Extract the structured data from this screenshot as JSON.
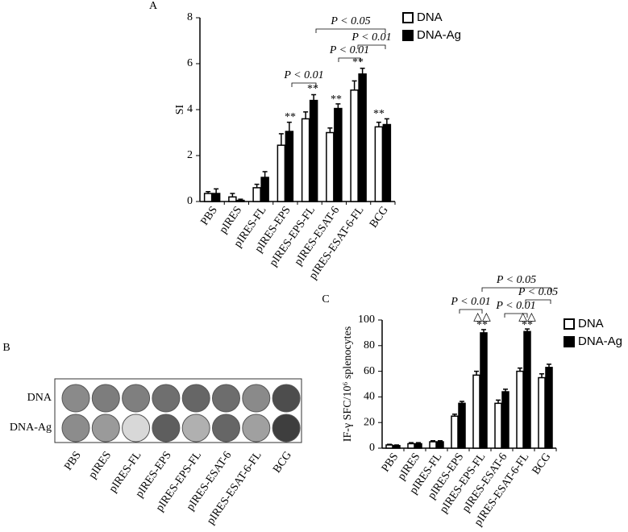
{
  "chart_data": [
    {
      "type": "bar",
      "panel": "A",
      "y_label": "SI",
      "categories": [
        "PBS",
        "pIRES",
        "pIRES-FL",
        "pIRES-EPS",
        "pIRES-EPS-FL",
        "pIRES-ESAT-6",
        "pIRES-ESAT-6-FL",
        "BCG"
      ],
      "series": [
        {
          "name": "DNA",
          "color": "#ffffff",
          "values": [
            0.35,
            0.2,
            0.6,
            2.45,
            3.6,
            3.0,
            4.85,
            3.25
          ],
          "errors": [
            0.08,
            0.15,
            0.15,
            0.5,
            0.3,
            0.2,
            0.4,
            0.2
          ]
        },
        {
          "name": "DNA-Ag",
          "color": "#000000",
          "values": [
            0.35,
            0.05,
            1.05,
            3.05,
            4.4,
            4.05,
            5.55,
            3.35
          ],
          "errors": [
            0.2,
            0.05,
            0.25,
            0.4,
            0.25,
            0.2,
            0.25,
            0.25
          ]
        }
      ],
      "ylim": [
        0,
        8
      ],
      "yticks": [
        0,
        2,
        4,
        6,
        8
      ],
      "annotations": [
        "P < 0.05",
        "P < 0.01",
        "P < 0.01",
        "P < 0.01",
        "**",
        "**",
        "**",
        "**",
        "**"
      ]
    },
    {
      "type": "bar",
      "panel": "C",
      "y_label": "IF-γ SFC/10⁶ splenocytes",
      "categories": [
        "PBS",
        "pIRES",
        "pIRES-FL",
        "pIRES-EPS",
        "pIRES-EPS-FL",
        "pIRES-ESAT-6",
        "pIRES-ESAT-6-FL",
        "BCG"
      ],
      "series": [
        {
          "name": "DNA",
          "color": "#ffffff",
          "values": [
            2.5,
            3.5,
            5,
            25,
            57,
            35,
            60,
            55
          ],
          "errors": [
            0.5,
            0.8,
            0.8,
            1.5,
            3,
            2.5,
            2.5,
            3
          ]
        },
        {
          "name": "DNA-Ag",
          "color": "#000000",
          "values": [
            2,
            3.5,
            5,
            35,
            90,
            44,
            91,
            63
          ],
          "errors": [
            0.5,
            0.8,
            0.8,
            1.5,
            2.5,
            2,
            2,
            2.5
          ]
        }
      ],
      "ylim": [
        0,
        100
      ],
      "yticks": [
        0,
        20,
        40,
        60,
        80,
        100
      ],
      "annotations": [
        "P < 0.05",
        "P < 0.01",
        "P < 0.05",
        "P < 0.01",
        "△△",
        "**",
        "△△",
        "**"
      ]
    }
  ],
  "panel_b": {
    "label": "B",
    "rows": [
      "DNA",
      "DNA-Ag"
    ],
    "columns": [
      "PBS",
      "pIRES",
      "pIRES-FL",
      "pIRES-EPS",
      "pIRES-EPS-FL",
      "pIRES-ESAT-6",
      "pIRES-ESAT-6-FL",
      "BCG"
    ]
  }
}
